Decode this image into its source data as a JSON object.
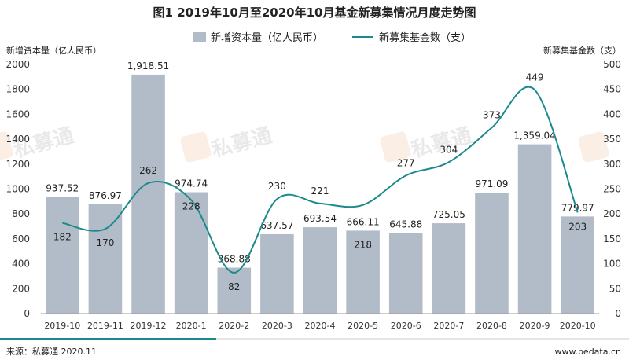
{
  "chart_data": {
    "type": "bar",
    "title": "图1  2019年10月至2020年10月基金新募集情况月度走势图",
    "categories": [
      "2019-10",
      "2019-11",
      "2019-12",
      "2020-1",
      "2020-2",
      "2020-3",
      "2020-4",
      "2020-5",
      "2020-6",
      "2020-7",
      "2020-8",
      "2020-9",
      "2020-10"
    ],
    "series": [
      {
        "name": "新增资本量（亿人民币）",
        "type": "bar",
        "axis": "left",
        "values": [
          937.52,
          876.97,
          1918.51,
          974.74,
          368.88,
          637.57,
          693.54,
          666.11,
          645.88,
          725.05,
          971.09,
          1359.04,
          779.97
        ],
        "labels": [
          "937.52",
          "876.97",
          "1,918.51",
          "974.74",
          "368.88",
          "637.57",
          "693.54",
          "666.11",
          "645.88",
          "725.05",
          "971.09",
          "1,359.04",
          "779.97"
        ]
      },
      {
        "name": "新募集基金数（支）",
        "type": "line",
        "axis": "right",
        "values": [
          182,
          170,
          262,
          228,
          82,
          230,
          221,
          218,
          277,
          304,
          373,
          449,
          203
        ],
        "labels": [
          "182",
          "170",
          "262",
          "228",
          "82",
          "230",
          "221",
          "218",
          "277",
          "304",
          "373",
          "449",
          "203"
        ]
      }
    ],
    "ylabel": "新增资本量（亿人民币）",
    "y2label": "新募集基金数（支）",
    "ylim": [
      0,
      2000
    ],
    "y2lim": [
      0,
      500
    ],
    "yticks": [
      0,
      200,
      400,
      600,
      800,
      1000,
      1200,
      1400,
      1600,
      1800,
      2000
    ],
    "y2ticks": [
      0,
      50,
      100,
      150,
      200,
      250,
      300,
      350,
      400,
      450,
      500
    ],
    "legend_position": "top-center",
    "grid": false,
    "colors": {
      "bar": "#b2bcc8",
      "line": "#1c8a8c",
      "accent_rule": "#1c8a8c"
    }
  },
  "footer": {
    "source": "来源：私募通 2020.11",
    "website": "www.pedata.cn"
  },
  "watermark": {
    "text": "私募通"
  }
}
